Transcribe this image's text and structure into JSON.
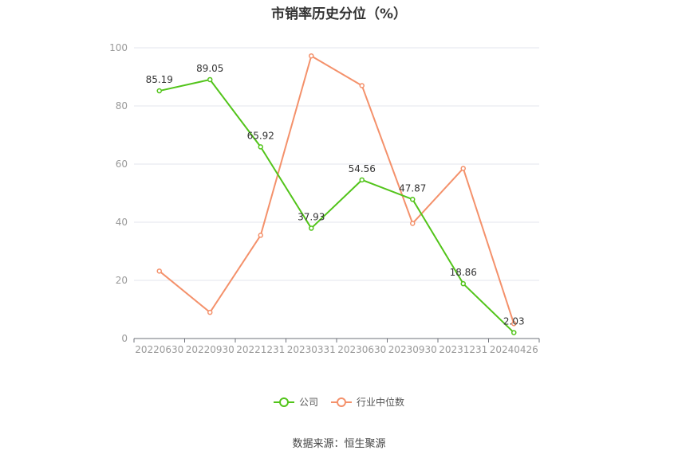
{
  "chart_data": {
    "type": "line",
    "title": "市销率历史分位（%）",
    "categories": [
      "20220630",
      "20220930",
      "20221231",
      "20230331",
      "20230630",
      "20230930",
      "20231231",
      "20240426"
    ],
    "ylim": [
      0,
      100
    ],
    "yticks": [
      0,
      20,
      40,
      60,
      80,
      100
    ],
    "grid": true,
    "legend_position": "bottom",
    "series": [
      {
        "name": "公司",
        "color": "#52c41a",
        "values": [
          85.19,
          89.05,
          65.92,
          37.93,
          54.56,
          47.87,
          18.86,
          2.03
        ],
        "labels": [
          "85.19",
          "89.05",
          "65.92",
          "37.93",
          "54.56",
          "47.87",
          "18.86",
          "2.03"
        ]
      },
      {
        "name": "行业中位数",
        "color": "#f4916b",
        "values": [
          23.2,
          9.0,
          35.5,
          97.2,
          87.0,
          39.6,
          58.5,
          5.1
        ]
      }
    ]
  },
  "source": "数据来源：恒生聚源"
}
